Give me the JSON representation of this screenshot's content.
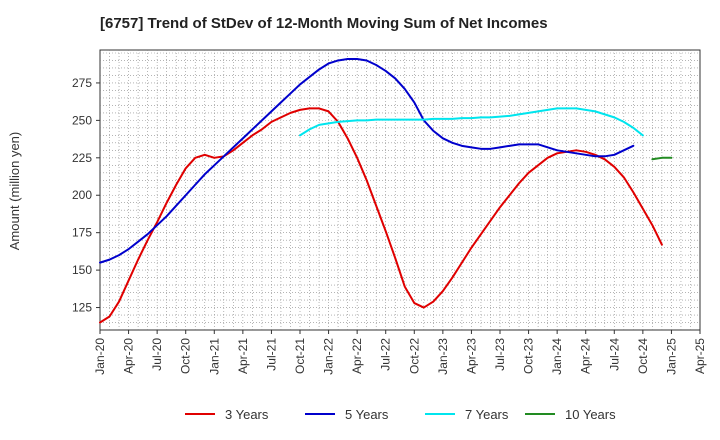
{
  "chart_data": {
    "type": "line",
    "title": "[6757]  Trend of StDev of 12-Month Moving Sum of Net Incomes",
    "ylabel": "Amount (million yen)",
    "xlabel": "",
    "x_start": "Jan-20",
    "x_end": "Apr-25",
    "ylim": [
      110,
      297
    ],
    "yticks": [
      125,
      150,
      175,
      200,
      225,
      250,
      275
    ],
    "xticks": [
      "Jan-20",
      "Apr-20",
      "Jul-20",
      "Oct-20",
      "Jan-21",
      "Apr-21",
      "Jul-21",
      "Oct-21",
      "Jan-22",
      "Apr-22",
      "Jul-22",
      "Oct-22",
      "Jan-23",
      "Apr-23",
      "Jul-23",
      "Oct-23",
      "Jan-24",
      "Apr-24",
      "Jul-24",
      "Oct-24",
      "Jan-25",
      "Apr-25"
    ],
    "grid": true,
    "legend_position": "bottom",
    "series": [
      {
        "name": "3 Years",
        "color": "#e00000",
        "points": [
          [
            "Jan-20",
            115
          ],
          [
            "Feb-20",
            119
          ],
          [
            "Mar-20",
            129
          ],
          [
            "Apr-20",
            143
          ],
          [
            "May-20",
            157
          ],
          [
            "Jun-20",
            170
          ],
          [
            "Jul-20",
            182
          ],
          [
            "Aug-20",
            195
          ],
          [
            "Sep-20",
            207
          ],
          [
            "Oct-20",
            218
          ],
          [
            "Nov-20",
            225
          ],
          [
            "Dec-20",
            227
          ],
          [
            "Jan-21",
            225
          ],
          [
            "Feb-21",
            226
          ],
          [
            "Mar-21",
            230
          ],
          [
            "Apr-21",
            235
          ],
          [
            "May-21",
            240
          ],
          [
            "Jun-21",
            244
          ],
          [
            "Jul-21",
            249
          ],
          [
            "Aug-21",
            252
          ],
          [
            "Sep-21",
            255
          ],
          [
            "Oct-21",
            257
          ],
          [
            "Nov-21",
            258
          ],
          [
            "Dec-21",
            258
          ],
          [
            "Jan-22",
            256
          ],
          [
            "Feb-22",
            249
          ],
          [
            "Mar-22",
            238
          ],
          [
            "Apr-22",
            225
          ],
          [
            "May-22",
            210
          ],
          [
            "Jun-22",
            193
          ],
          [
            "Jul-22",
            176
          ],
          [
            "Aug-22",
            158
          ],
          [
            "Sep-22",
            139
          ],
          [
            "Oct-22",
            128
          ],
          [
            "Nov-22",
            125
          ],
          [
            "Dec-22",
            129
          ],
          [
            "Jan-23",
            136
          ],
          [
            "Feb-23",
            145
          ],
          [
            "Mar-23",
            155
          ],
          [
            "Apr-23",
            165
          ],
          [
            "May-23",
            174
          ],
          [
            "Jun-23",
            183
          ],
          [
            "Jul-23",
            192
          ],
          [
            "Aug-23",
            200
          ],
          [
            "Sep-23",
            208
          ],
          [
            "Oct-23",
            215
          ],
          [
            "Nov-23",
            220
          ],
          [
            "Dec-23",
            225
          ],
          [
            "Jan-24",
            228
          ],
          [
            "Feb-24",
            229
          ],
          [
            "Mar-24",
            230
          ],
          [
            "Apr-24",
            229
          ],
          [
            "May-24",
            227
          ],
          [
            "Jun-24",
            224
          ],
          [
            "Jul-24",
            219
          ],
          [
            "Aug-24",
            212
          ],
          [
            "Sep-24",
            202
          ],
          [
            "Oct-24",
            191
          ],
          [
            "Nov-24",
            180
          ],
          [
            "Dec-24",
            167
          ]
        ]
      },
      {
        "name": "5 Years",
        "color": "#0000cc",
        "points": [
          [
            "Jan-20",
            155
          ],
          [
            "Feb-20",
            157
          ],
          [
            "Mar-20",
            160
          ],
          [
            "Apr-20",
            164
          ],
          [
            "May-20",
            169
          ],
          [
            "Jun-20",
            174
          ],
          [
            "Jul-20",
            180
          ],
          [
            "Aug-20",
            186
          ],
          [
            "Sep-20",
            193
          ],
          [
            "Oct-20",
            200
          ],
          [
            "Nov-20",
            207
          ],
          [
            "Dec-20",
            214
          ],
          [
            "Jan-21",
            220
          ],
          [
            "Feb-21",
            226
          ],
          [
            "Mar-21",
            232
          ],
          [
            "Apr-21",
            238
          ],
          [
            "May-21",
            244
          ],
          [
            "Jun-21",
            250
          ],
          [
            "Jul-21",
            256
          ],
          [
            "Aug-21",
            262
          ],
          [
            "Sep-21",
            268
          ],
          [
            "Oct-21",
            274
          ],
          [
            "Nov-21",
            279
          ],
          [
            "Dec-21",
            284
          ],
          [
            "Jan-22",
            288
          ],
          [
            "Feb-22",
            290
          ],
          [
            "Mar-22",
            291
          ],
          [
            "Apr-22",
            291
          ],
          [
            "May-22",
            290
          ],
          [
            "Jun-22",
            287
          ],
          [
            "Jul-22",
            283
          ],
          [
            "Aug-22",
            278
          ],
          [
            "Sep-22",
            271
          ],
          [
            "Oct-22",
            262
          ],
          [
            "Nov-22",
            250
          ],
          [
            "Dec-22",
            243
          ],
          [
            "Jan-23",
            238
          ],
          [
            "Feb-23",
            235
          ],
          [
            "Mar-23",
            233
          ],
          [
            "Apr-23",
            232
          ],
          [
            "May-23",
            231
          ],
          [
            "Jun-23",
            231
          ],
          [
            "Jul-23",
            232
          ],
          [
            "Aug-23",
            233
          ],
          [
            "Sep-23",
            234
          ],
          [
            "Oct-23",
            234
          ],
          [
            "Nov-23",
            234
          ],
          [
            "Dec-23",
            232
          ],
          [
            "Jan-24",
            230
          ],
          [
            "Feb-24",
            229
          ],
          [
            "Mar-24",
            228
          ],
          [
            "Apr-24",
            227
          ],
          [
            "May-24",
            226
          ],
          [
            "Jun-24",
            226
          ],
          [
            "Jul-24",
            227
          ],
          [
            "Aug-24",
            230
          ],
          [
            "Sep-24",
            233
          ]
        ]
      },
      {
        "name": "7 Years",
        "color": "#00e5ee",
        "points": [
          [
            "Oct-21",
            240
          ],
          [
            "Nov-21",
            244
          ],
          [
            "Dec-21",
            247
          ],
          [
            "Jan-22",
            248
          ],
          [
            "Feb-22",
            249
          ],
          [
            "Mar-22",
            249.5
          ],
          [
            "Apr-22",
            250
          ],
          [
            "May-22",
            250
          ],
          [
            "Jun-22",
            250.5
          ],
          [
            "Jul-22",
            250.5
          ],
          [
            "Aug-22",
            250.5
          ],
          [
            "Sep-22",
            250.5
          ],
          [
            "Oct-22",
            250.5
          ],
          [
            "Nov-22",
            250.5
          ],
          [
            "Dec-22",
            251
          ],
          [
            "Jan-23",
            251
          ],
          [
            "Feb-23",
            251
          ],
          [
            "Mar-23",
            251.5
          ],
          [
            "Apr-23",
            251.5
          ],
          [
            "May-23",
            252
          ],
          [
            "Jun-23",
            252
          ],
          [
            "Jul-23",
            252.5
          ],
          [
            "Aug-23",
            253
          ],
          [
            "Sep-23",
            254
          ],
          [
            "Oct-23",
            255
          ],
          [
            "Nov-23",
            256
          ],
          [
            "Dec-23",
            257
          ],
          [
            "Jan-24",
            258
          ],
          [
            "Feb-24",
            258
          ],
          [
            "Mar-24",
            258
          ],
          [
            "Apr-24",
            257
          ],
          [
            "May-24",
            256
          ],
          [
            "Jun-24",
            254
          ],
          [
            "Jul-24",
            252
          ],
          [
            "Aug-24",
            249
          ],
          [
            "Sep-24",
            245
          ],
          [
            "Oct-24",
            240
          ]
        ]
      },
      {
        "name": "10 Years",
        "color": "#228b22",
        "points": [
          [
            "Nov-24",
            224
          ],
          [
            "Dec-24",
            225
          ],
          [
            "Jan-25",
            225
          ]
        ]
      }
    ]
  }
}
